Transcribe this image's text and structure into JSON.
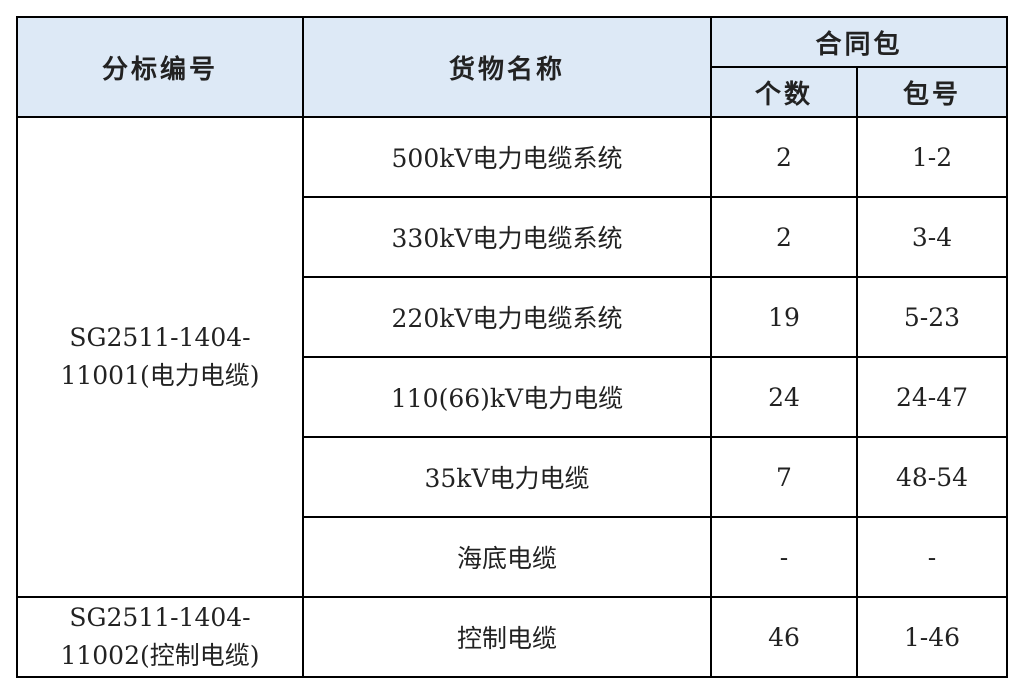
{
  "header": {
    "col1": "分标编号",
    "col2": "货物名称",
    "group": "合同包",
    "sub1": "个数",
    "sub2": "包号"
  },
  "groups": [
    {
      "code_line1": "SG2511-1404-",
      "code_line2": "11001(电力电缆)",
      "rows": [
        {
          "name": "500kV电力电缆系统",
          "count": "2",
          "packages": "1-2"
        },
        {
          "name": "330kV电力电缆系统",
          "count": "2",
          "packages": "3-4"
        },
        {
          "name": "220kV电力电缆系统",
          "count": "19",
          "packages": "5-23"
        },
        {
          "name": "110(66)kV电力电缆",
          "count": "24",
          "packages": "24-47"
        },
        {
          "name": "35kV电力电缆",
          "count": "7",
          "packages": "48-54"
        },
        {
          "name": "海底电缆",
          "count": "-",
          "packages": "-"
        }
      ]
    },
    {
      "code_line1": "SG2511-1404-",
      "code_line2": "11002(控制电缆)",
      "rows": [
        {
          "name": "控制电缆",
          "count": "46",
          "packages": "1-46"
        }
      ]
    }
  ]
}
